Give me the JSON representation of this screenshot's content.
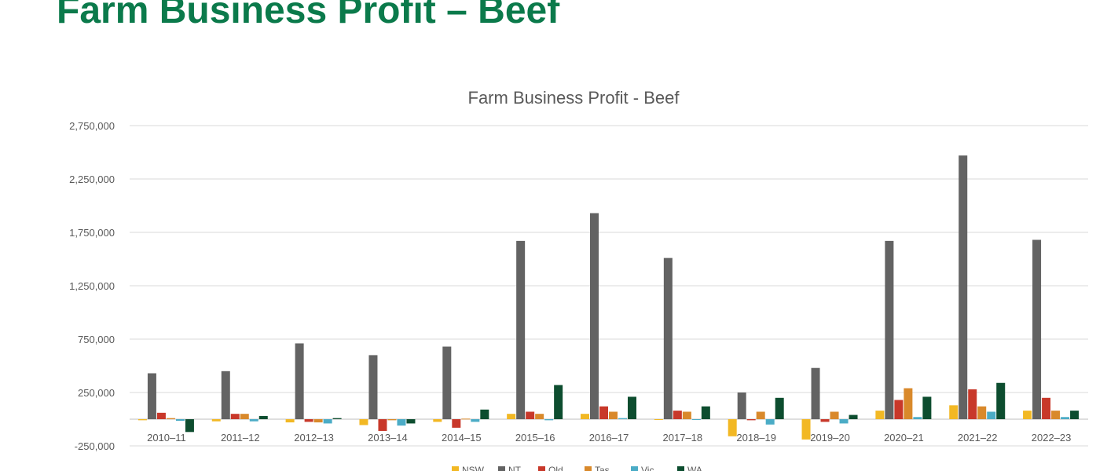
{
  "slide": {
    "title": "Farm Business Profit – Beef"
  },
  "chart_data": {
    "type": "bar",
    "title": "Farm Business Profit - Beef",
    "xlabel": "",
    "ylabel": "",
    "ylim": [
      -250000,
      2750000
    ],
    "yticks": [
      -250000,
      250000,
      750000,
      1250000,
      1750000,
      2250000,
      2750000
    ],
    "ytick_labels": [
      "-250,000",
      "250,000",
      "750,000",
      "1,250,000",
      "1,750,000",
      "2,250,000",
      "2,750,000"
    ],
    "grid": true,
    "legend_position": "bottom",
    "categories": [
      "2010–11",
      "2011–12",
      "2012–13",
      "2013–14",
      "2014–15",
      "2015–16",
      "2016–17",
      "2017–18",
      "2018–19",
      "2019–20",
      "2020–21",
      "2021–22",
      "2022–23"
    ],
    "series": [
      {
        "name": "NSW",
        "color": "#f2b824",
        "values": [
          -10000,
          -20000,
          -30000,
          -55000,
          -25000,
          50000,
          50000,
          0,
          -160000,
          -190000,
          80000,
          130000,
          80000
        ]
      },
      {
        "name": "NT",
        "color": "#636363",
        "values": [
          430000,
          450000,
          710000,
          600000,
          680000,
          1670000,
          1930000,
          1510000,
          250000,
          480000,
          1670000,
          2470000,
          1680000
        ]
      },
      {
        "name": "Qld",
        "color": "#c8382a",
        "values": [
          60000,
          50000,
          -25000,
          -110000,
          -80000,
          70000,
          120000,
          80000,
          -10000,
          -25000,
          180000,
          280000,
          200000
        ]
      },
      {
        "name": "Tas",
        "color": "#d9892b",
        "values": [
          10000,
          50000,
          -30000,
          -10000,
          5000,
          50000,
          70000,
          70000,
          70000,
          70000,
          290000,
          120000,
          80000
        ]
      },
      {
        "name": "Vic",
        "color": "#4bacc6",
        "values": [
          -15000,
          -20000,
          -40000,
          -60000,
          -25000,
          -10000,
          10000,
          0,
          -50000,
          -40000,
          20000,
          70000,
          20000
        ]
      },
      {
        "name": "WA",
        "color": "#0d4d2f",
        "values": [
          -120000,
          30000,
          10000,
          -40000,
          90000,
          320000,
          210000,
          120000,
          200000,
          40000,
          210000,
          340000,
          80000
        ]
      }
    ]
  }
}
